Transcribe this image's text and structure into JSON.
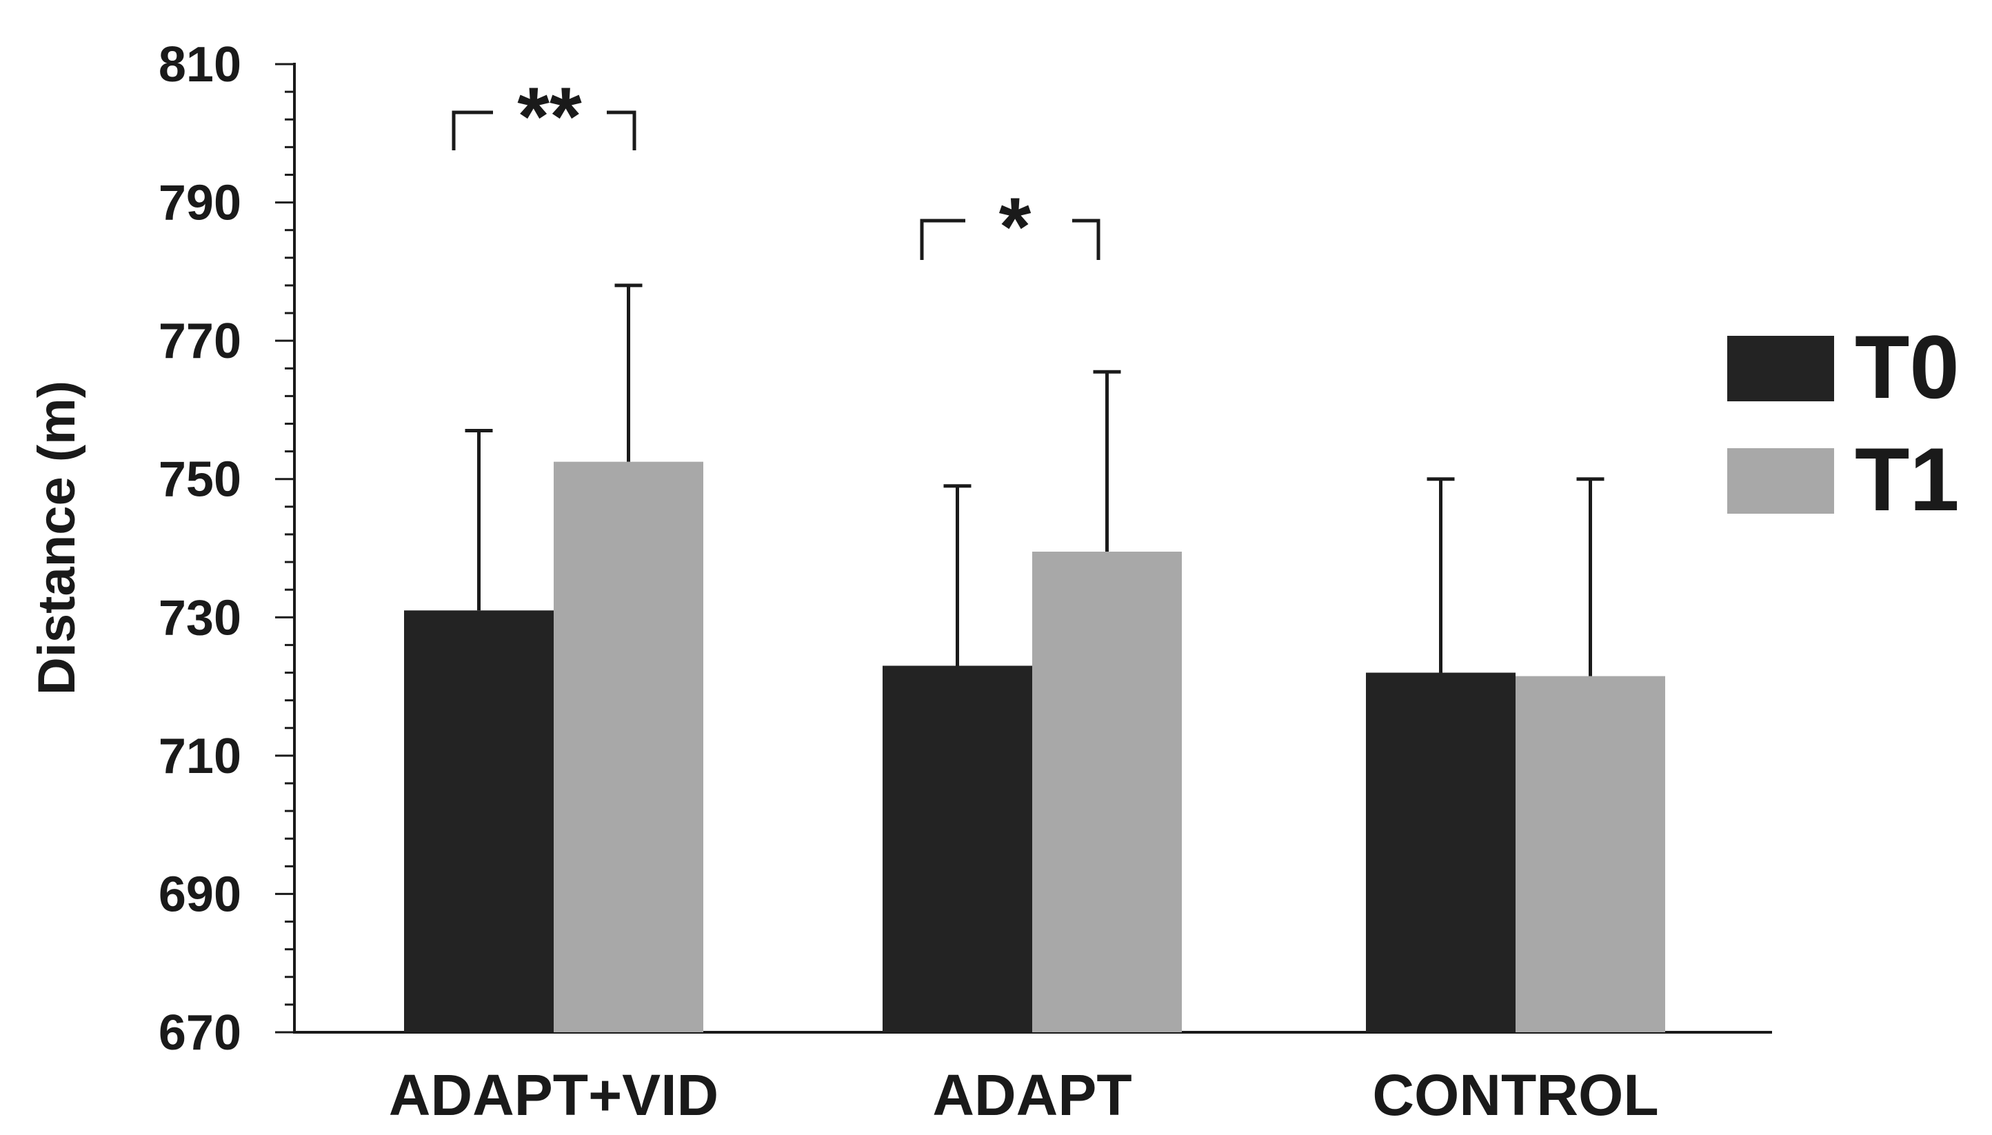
{
  "chart_data": {
    "type": "bar",
    "title": "",
    "xlabel": "",
    "ylabel": "Distance (m)",
    "ylim": [
      670,
      810
    ],
    "yticks": [
      670,
      690,
      710,
      730,
      750,
      770,
      790,
      810
    ],
    "categories": [
      "ADAPT+VID",
      "ADAPT",
      "CONTROL"
    ],
    "series": [
      {
        "name": "T0",
        "color": "#232323",
        "values": [
          731,
          723,
          722
        ],
        "errors": [
          26,
          26,
          28
        ]
      },
      {
        "name": "T1",
        "color": "#a8a8a8",
        "values": [
          752.5,
          739.5,
          721.5
        ],
        "errors": [
          25.5,
          26,
          28.5
        ]
      }
    ],
    "legend": {
      "position": "right"
    },
    "annotations": [
      {
        "text": "**",
        "category": "ADAPT+VID"
      },
      {
        "text": "*",
        "category": "ADAPT"
      }
    ]
  }
}
